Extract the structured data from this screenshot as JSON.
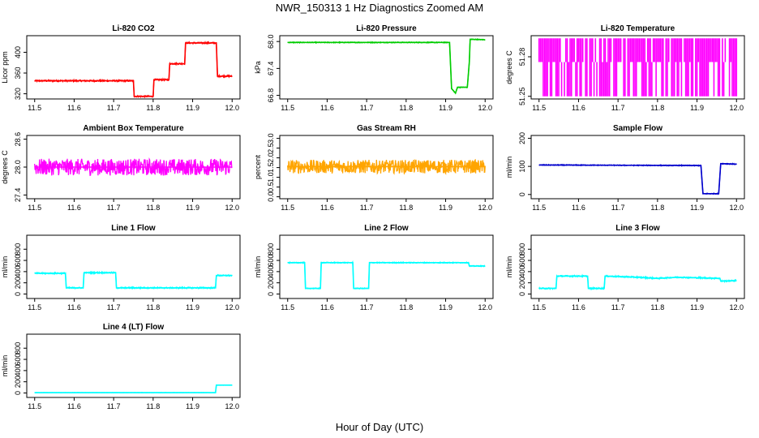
{
  "figure": {
    "title": "NWR_150313  1 Hz Diagnostics Zoomed AM",
    "xlabel": "Hour of Day (UTC)"
  },
  "chart_data": [
    {
      "type": "line",
      "title": "Li-820 CO2",
      "ylabel": "Licor ppm",
      "color": "#ff0000",
      "xlim": [
        11.48,
        12.02
      ],
      "ylim": [
        310,
        432
      ],
      "xticks": [
        11.5,
        11.6,
        11.7,
        11.8,
        11.9,
        12.0
      ],
      "yticks": [
        320,
        360,
        400
      ],
      "noise": 1.5,
      "x": [
        11.5,
        11.6,
        11.75,
        11.752,
        11.8,
        11.802,
        11.84,
        11.842,
        11.88,
        11.882,
        11.96,
        11.963,
        12.0
      ],
      "y": [
        345,
        345,
        345,
        315,
        315,
        347,
        347,
        378,
        378,
        418,
        418,
        354,
        354
      ]
    },
    {
      "type": "line",
      "title": "Li-820 Pressure",
      "ylabel": "kPa",
      "color": "#00cc00",
      "xlim": [
        11.48,
        12.02
      ],
      "ylim": [
        66.72,
        68.13
      ],
      "xticks": [
        11.5,
        11.6,
        11.7,
        11.8,
        11.9,
        12.0
      ],
      "yticks": [
        66.8,
        67.4,
        68.0
      ],
      "noise": 0.01,
      "x": [
        11.5,
        11.8,
        11.91,
        11.915,
        11.925,
        11.93,
        11.955,
        11.96,
        11.962,
        12.0
      ],
      "y": [
        67.98,
        67.98,
        67.98,
        66.95,
        66.85,
        66.98,
        66.98,
        67.55,
        68.05,
        68.04
      ]
    },
    {
      "type": "bar",
      "title": "Li-820 Temperature",
      "ylabel": "degrees C",
      "color": "#ff00ff",
      "xlim": [
        11.48,
        12.02
      ],
      "ylim": [
        51.248,
        51.296
      ],
      "xticks": [
        11.5,
        11.6,
        11.7,
        11.8,
        11.9,
        12.0
      ],
      "yticks": [
        51.25,
        51.28
      ],
      "baseline": 51.276,
      "upper": 51.294,
      "lower": 51.25
    },
    {
      "type": "line",
      "title": "Ambient Box Temperature",
      "ylabel": "degrees C",
      "color": "#ff00ff",
      "xlim": [
        11.48,
        12.02
      ],
      "ylim": [
        27.32,
        28.68
      ],
      "xticks": [
        11.5,
        11.6,
        11.7,
        11.8,
        11.9,
        12.0
      ],
      "yticks": [
        27.4,
        28.0,
        28.6
      ],
      "noise": 0.18,
      "x": [
        11.5,
        12.0
      ],
      "y": [
        28.0,
        28.0
      ]
    },
    {
      "type": "line",
      "title": "Gas Stream RH",
      "ylabel": "percent",
      "color": "#ffa500",
      "xlim": [
        11.48,
        12.02
      ],
      "ylim": [
        -0.1,
        3.15
      ],
      "xticks": [
        11.5,
        11.6,
        11.7,
        11.8,
        11.9,
        12.0
      ],
      "yticks": [
        0.0,
        0.5,
        1.0,
        1.5,
        2.0,
        2.5,
        3.0
      ],
      "noise": 0.35,
      "x": [
        11.5,
        12.0
      ],
      "y": [
        1.55,
        1.55
      ]
    },
    {
      "type": "line",
      "title": "Sample Flow",
      "ylabel": "ml/min",
      "color": "#0000cc",
      "xlim": [
        11.48,
        12.02
      ],
      "ylim": [
        -15,
        210
      ],
      "xticks": [
        11.5,
        11.6,
        11.7,
        11.8,
        11.9,
        12.0
      ],
      "yticks": [
        0,
        100,
        200
      ],
      "noise": 1.5,
      "x": [
        11.5,
        11.91,
        11.915,
        11.955,
        11.96,
        12.0
      ],
      "y": [
        105,
        103,
        3,
        3,
        110,
        108
      ]
    },
    {
      "type": "line",
      "title": "Line 1 Flow",
      "ylabel": "ml/min",
      "color": "#00ffff",
      "xlim": [
        11.48,
        12.02
      ],
      "ylim": [
        -80,
        1050
      ],
      "xticks": [
        11.5,
        11.6,
        11.7,
        11.8,
        11.9,
        12.0
      ],
      "yticks": [
        0,
        200,
        400,
        600,
        800
      ],
      "noise": 12,
      "x": [
        11.5,
        11.578,
        11.58,
        11.623,
        11.625,
        11.705,
        11.707,
        11.958,
        11.96,
        12.0
      ],
      "y": [
        370,
        370,
        110,
        110,
        380,
        380,
        110,
        110,
        330,
        330
      ]
    },
    {
      "type": "line",
      "title": "Line 2 Flow",
      "ylabel": "ml/min",
      "color": "#00ffff",
      "xlim": [
        11.48,
        12.02
      ],
      "ylim": [
        -80,
        1050
      ],
      "xticks": [
        11.5,
        11.6,
        11.7,
        11.8,
        11.9,
        12.0
      ],
      "yticks": [
        0,
        200,
        400,
        600,
        800
      ],
      "noise": 8,
      "x": [
        11.5,
        11.543,
        11.545,
        11.583,
        11.585,
        11.665,
        11.667,
        11.705,
        11.707,
        11.958,
        11.96,
        12.0
      ],
      "y": [
        560,
        560,
        100,
        100,
        560,
        560,
        100,
        100,
        560,
        560,
        500,
        500
      ]
    },
    {
      "type": "line",
      "title": "Line 3 Flow",
      "ylabel": "ml/min",
      "color": "#00ffff",
      "xlim": [
        11.48,
        12.02
      ],
      "ylim": [
        -80,
        1050
      ],
      "xticks": [
        11.5,
        11.6,
        11.7,
        11.8,
        11.9,
        12.0
      ],
      "yticks": [
        0,
        200,
        400,
        600,
        800
      ],
      "noise": 12,
      "x": [
        11.5,
        11.543,
        11.545,
        11.623,
        11.625,
        11.665,
        11.667,
        11.75,
        11.8,
        11.85,
        11.9,
        11.958,
        11.96,
        12.0
      ],
      "y": [
        100,
        100,
        320,
        320,
        100,
        100,
        320,
        300,
        280,
        300,
        290,
        280,
        230,
        240
      ]
    },
    {
      "type": "line",
      "title": "Line 4 (LT) Flow",
      "ylabel": "ml/min",
      "color": "#00ffff",
      "xlim": [
        11.48,
        12.02
      ],
      "ylim": [
        -80,
        1050
      ],
      "xticks": [
        11.5,
        11.6,
        11.7,
        11.8,
        11.9,
        12.0
      ],
      "yticks": [
        0,
        200,
        400,
        600,
        800
      ],
      "noise": 3,
      "x": [
        11.5,
        11.958,
        11.96,
        12.0
      ],
      "y": [
        5,
        5,
        140,
        140
      ]
    }
  ]
}
